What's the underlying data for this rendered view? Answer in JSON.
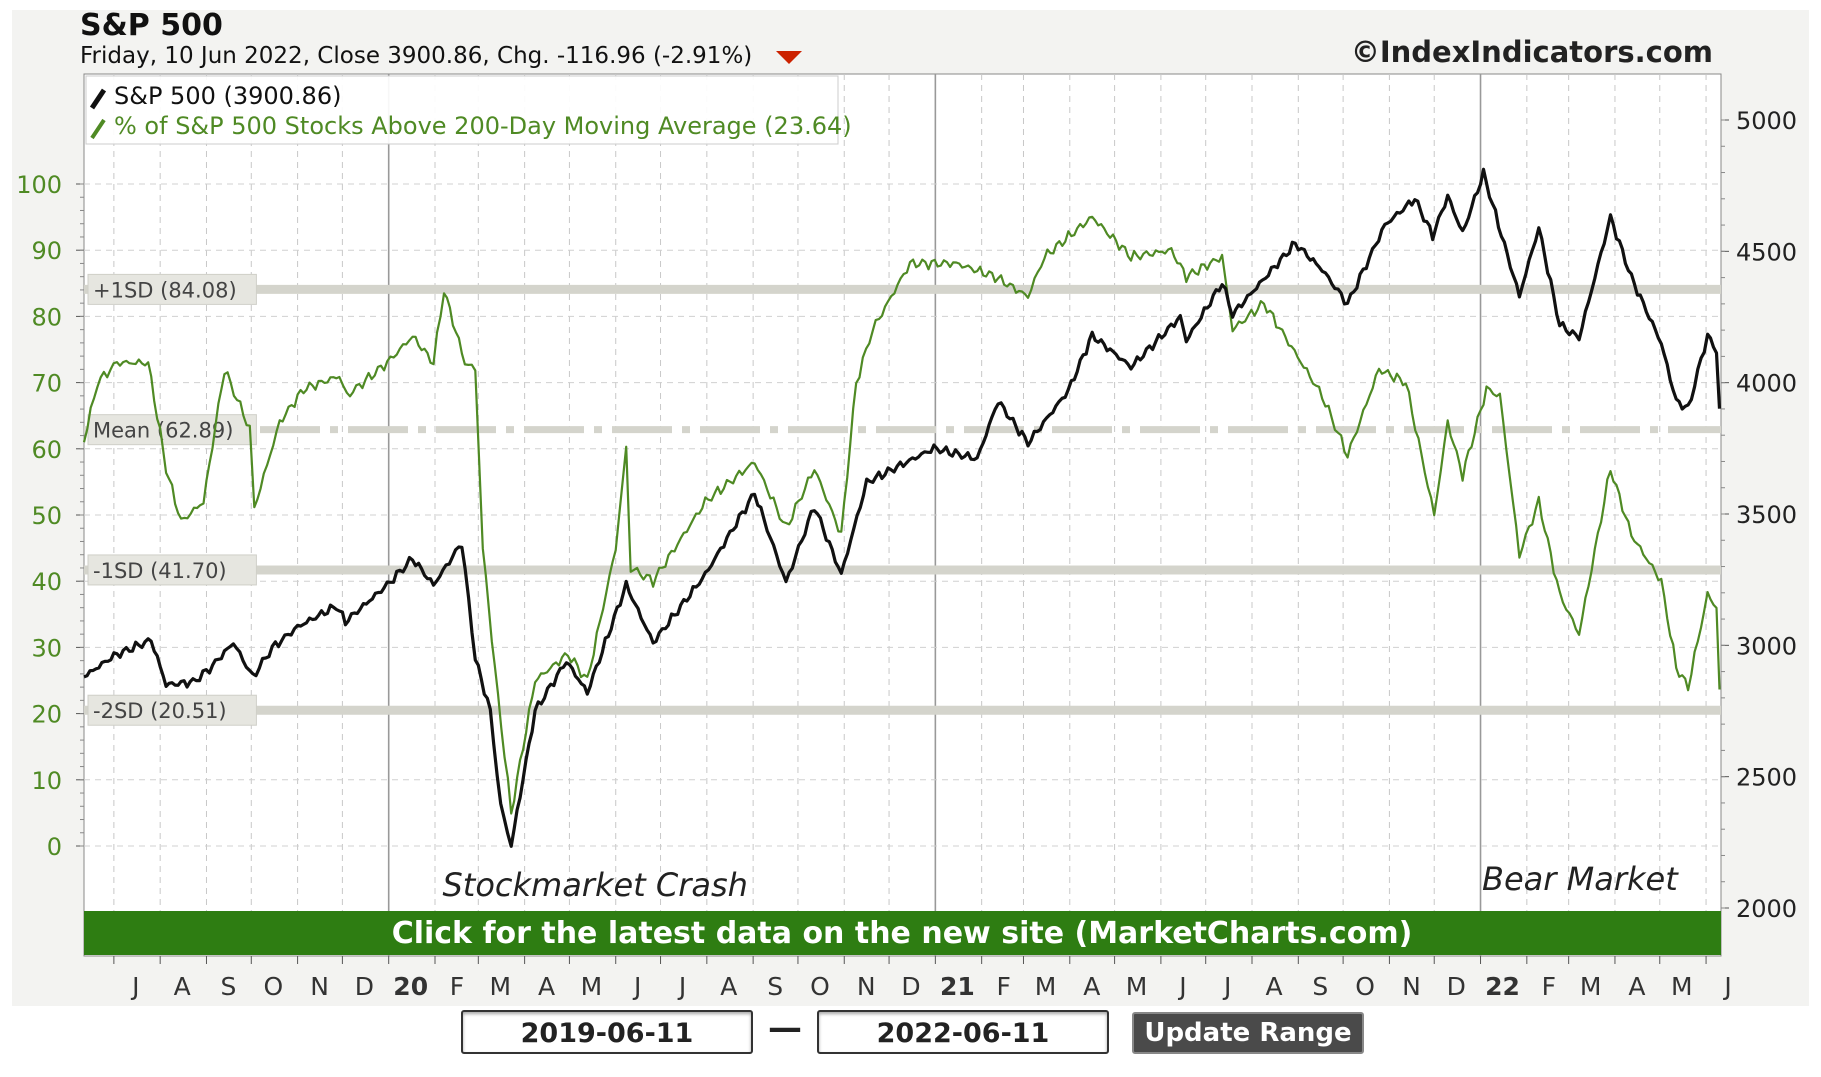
{
  "header": {
    "title": "S&P 500",
    "subtitle": "Friday, 10 Jun 2022, Close 3900.86, Chg. -116.96 (-2.91%)",
    "copyright": "©IndexIndicators.com"
  },
  "banner": {
    "text": "Click for the latest data on the new site (MarketCharts.com)"
  },
  "controls": {
    "start_date": "2019-06-11",
    "end_date": "2022-06-11",
    "separator": "—",
    "update_label": "Update Range"
  },
  "colors": {
    "background": "#f3f3f1",
    "plot_bg": "#ffffff",
    "sp500": "#111111",
    "breadth": "#4f8a24",
    "axis_left": "#4f8a24",
    "banner": "#2e7d12",
    "band": "#d4d4cc",
    "down_arrow": "#cc2200"
  },
  "chart_data": {
    "type": "line",
    "x_axis": {
      "start": "2019-06-11",
      "end": "2022-06-11",
      "tick_labels": [
        "J",
        "A",
        "S",
        "O",
        "N",
        "D",
        "20",
        "F",
        "M",
        "A",
        "M",
        "J",
        "J",
        "A",
        "S",
        "O",
        "N",
        "D",
        "21",
        "F",
        "M",
        "A",
        "M",
        "J",
        "J",
        "A",
        "S",
        "O",
        "N",
        "D",
        "22",
        "F",
        "M",
        "A",
        "M",
        "J"
      ],
      "tick_dates": [
        "2019-07-01",
        "2019-08-01",
        "2019-09-01",
        "2019-10-01",
        "2019-11-01",
        "2019-12-01",
        "2020-01-01",
        "2020-02-01",
        "2020-03-01",
        "2020-04-01",
        "2020-05-01",
        "2020-06-01",
        "2020-07-01",
        "2020-08-01",
        "2020-09-01",
        "2020-10-01",
        "2020-11-01",
        "2020-12-01",
        "2021-01-01",
        "2021-02-01",
        "2021-03-01",
        "2021-04-01",
        "2021-05-01",
        "2021-06-01",
        "2021-07-01",
        "2021-08-01",
        "2021-09-01",
        "2021-10-01",
        "2021-11-01",
        "2021-12-01",
        "2022-01-01",
        "2022-02-01",
        "2022-03-01",
        "2022-04-01",
        "2022-05-01",
        "2022-06-01"
      ],
      "year_ticks": [
        "20",
        "21",
        "22"
      ]
    },
    "y_left": {
      "min": 0,
      "max": 100,
      "ticks": [
        0,
        10,
        20,
        30,
        40,
        50,
        60,
        70,
        80,
        90,
        100
      ]
    },
    "y_right": {
      "min": 2000,
      "max": 5000,
      "ticks": [
        2000,
        2500,
        3000,
        3500,
        4000,
        4500,
        5000
      ]
    },
    "legend": {
      "position": "top-left",
      "entries": [
        "S&P 500 (3900.86)",
        "% of S&P 500 Stocks Above 200-Day Moving Average (23.64)"
      ]
    },
    "reference_lines": [
      {
        "label": "+1SD (84.08)",
        "value": 84.08
      },
      {
        "label": "Mean (62.89)",
        "value": 62.89
      },
      {
        "label": "-1SD (41.70)",
        "value": 41.7
      },
      {
        "label": "-2SD (20.51)",
        "value": 20.51
      }
    ],
    "annotations": [
      {
        "text": "Stockmarket Crash",
        "date": "2020-02-06"
      },
      {
        "text": "Bear Market",
        "date": "2022-01-02"
      }
    ],
    "series": [
      {
        "name": "S&P 500 (3900.86)",
        "axis": "right",
        "points": [
          [
            "2019-06-11",
            2880
          ],
          [
            "2019-07-01",
            2960
          ],
          [
            "2019-07-26",
            3020
          ],
          [
            "2019-08-05",
            2850
          ],
          [
            "2019-08-23",
            2860
          ],
          [
            "2019-09-03",
            2910
          ],
          [
            "2019-09-19",
            3010
          ],
          [
            "2019-10-02",
            2880
          ],
          [
            "2019-10-15",
            2990
          ],
          [
            "2019-11-01",
            3070
          ],
          [
            "2019-11-27",
            3150
          ],
          [
            "2019-12-03",
            3090
          ],
          [
            "2019-12-31",
            3230
          ],
          [
            "2020-01-17",
            3330
          ],
          [
            "2020-01-31",
            3230
          ],
          [
            "2020-02-19",
            3390
          ],
          [
            "2020-02-28",
            2950
          ],
          [
            "2020-03-09",
            2750
          ],
          [
            "2020-03-16",
            2390
          ],
          [
            "2020-03-23",
            2237
          ],
          [
            "2020-04-08",
            2750
          ],
          [
            "2020-04-29",
            2940
          ],
          [
            "2020-05-13",
            2820
          ],
          [
            "2020-06-08",
            3230
          ],
          [
            "2020-06-26",
            3010
          ],
          [
            "2020-07-31",
            3270
          ],
          [
            "2020-09-02",
            3580
          ],
          [
            "2020-09-23",
            3240
          ],
          [
            "2020-10-12",
            3530
          ],
          [
            "2020-10-30",
            3270
          ],
          [
            "2020-11-16",
            3620
          ],
          [
            "2020-12-31",
            3750
          ],
          [
            "2021-01-29",
            3710
          ],
          [
            "2021-02-12",
            3930
          ],
          [
            "2021-03-04",
            3770
          ],
          [
            "2021-03-31",
            3970
          ],
          [
            "2021-04-16",
            4180
          ],
          [
            "2021-05-12",
            4060
          ],
          [
            "2021-06-14",
            4250
          ],
          [
            "2021-06-18",
            4160
          ],
          [
            "2021-07-12",
            4380
          ],
          [
            "2021-07-19",
            4260
          ],
          [
            "2021-08-30",
            4530
          ],
          [
            "2021-09-17",
            4430
          ],
          [
            "2021-10-04",
            4300
          ],
          [
            "2021-10-29",
            4600
          ],
          [
            "2021-11-18",
            4700
          ],
          [
            "2021-11-30",
            4560
          ],
          [
            "2021-12-10",
            4710
          ],
          [
            "2021-12-20",
            4570
          ],
          [
            "2022-01-03",
            4797
          ],
          [
            "2022-01-27",
            4330
          ],
          [
            "2022-02-09",
            4590
          ],
          [
            "2022-02-23",
            4220
          ],
          [
            "2022-03-08",
            4170
          ],
          [
            "2022-03-29",
            4630
          ],
          [
            "2022-04-12",
            4400
          ],
          [
            "2022-05-02",
            4150
          ],
          [
            "2022-05-12",
            3930
          ],
          [
            "2022-05-20",
            3900
          ],
          [
            "2022-06-02",
            4180
          ],
          [
            "2022-06-08",
            4120
          ],
          [
            "2022-06-10",
            3900.86
          ]
        ]
      },
      {
        "name": "% of S&P 500 Stocks Above 200-Day Moving Average (23.64)",
        "axis": "left",
        "points": [
          [
            "2019-06-11",
            61
          ],
          [
            "2019-06-20",
            70
          ],
          [
            "2019-07-03",
            73
          ],
          [
            "2019-07-24",
            73
          ],
          [
            "2019-08-05",
            57
          ],
          [
            "2019-08-15",
            49
          ],
          [
            "2019-08-30",
            52
          ],
          [
            "2019-09-13",
            72
          ],
          [
            "2019-09-30",
            63
          ],
          [
            "2019-10-03",
            51
          ],
          [
            "2019-10-20",
            64
          ],
          [
            "2019-11-05",
            69
          ],
          [
            "2019-11-29",
            71
          ],
          [
            "2019-12-04",
            68
          ],
          [
            "2019-12-31",
            73
          ],
          [
            "2020-01-17",
            77
          ],
          [
            "2020-01-31",
            73
          ],
          [
            "2020-02-07",
            84
          ],
          [
            "2020-02-21",
            73
          ],
          [
            "2020-02-28",
            72
          ],
          [
            "2020-03-04",
            45
          ],
          [
            "2020-03-12",
            27
          ],
          [
            "2020-03-23",
            5
          ],
          [
            "2020-04-08",
            25
          ],
          [
            "2020-04-30",
            29
          ],
          [
            "2020-05-13",
            25
          ],
          [
            "2020-06-01",
            45
          ],
          [
            "2020-06-08",
            60
          ],
          [
            "2020-06-11",
            42
          ],
          [
            "2020-06-26",
            40
          ],
          [
            "2020-07-31",
            52
          ],
          [
            "2020-09-02",
            58
          ],
          [
            "2020-09-23",
            48
          ],
          [
            "2020-10-12",
            57
          ],
          [
            "2020-10-30",
            47
          ],
          [
            "2020-11-09",
            70
          ],
          [
            "2020-11-20",
            78
          ],
          [
            "2020-12-15",
            88
          ],
          [
            "2021-01-15",
            88
          ],
          [
            "2021-02-10",
            86
          ],
          [
            "2021-03-04",
            83
          ],
          [
            "2021-03-15",
            89
          ],
          [
            "2021-04-16",
            95
          ],
          [
            "2021-05-12",
            89
          ],
          [
            "2021-06-08",
            90
          ],
          [
            "2021-06-18",
            86
          ],
          [
            "2021-07-12",
            89
          ],
          [
            "2021-07-19",
            78
          ],
          [
            "2021-08-09",
            82
          ],
          [
            "2021-09-17",
            68
          ],
          [
            "2021-10-04",
            59
          ],
          [
            "2021-10-25",
            72
          ],
          [
            "2021-11-12",
            70
          ],
          [
            "2021-12-01",
            50
          ],
          [
            "2021-12-10",
            64
          ],
          [
            "2021-12-20",
            56
          ],
          [
            "2022-01-05",
            69
          ],
          [
            "2022-01-14",
            68
          ],
          [
            "2022-01-27",
            44
          ],
          [
            "2022-02-09",
            52
          ],
          [
            "2022-02-23",
            38
          ],
          [
            "2022-03-08",
            32
          ],
          [
            "2022-03-29",
            57
          ],
          [
            "2022-04-12",
            47
          ],
          [
            "2022-05-02",
            40
          ],
          [
            "2022-05-12",
            27
          ],
          [
            "2022-05-20",
            24
          ],
          [
            "2022-06-02",
            38
          ],
          [
            "2022-06-08",
            36
          ],
          [
            "2022-06-10",
            23.64
          ]
        ]
      }
    ]
  }
}
